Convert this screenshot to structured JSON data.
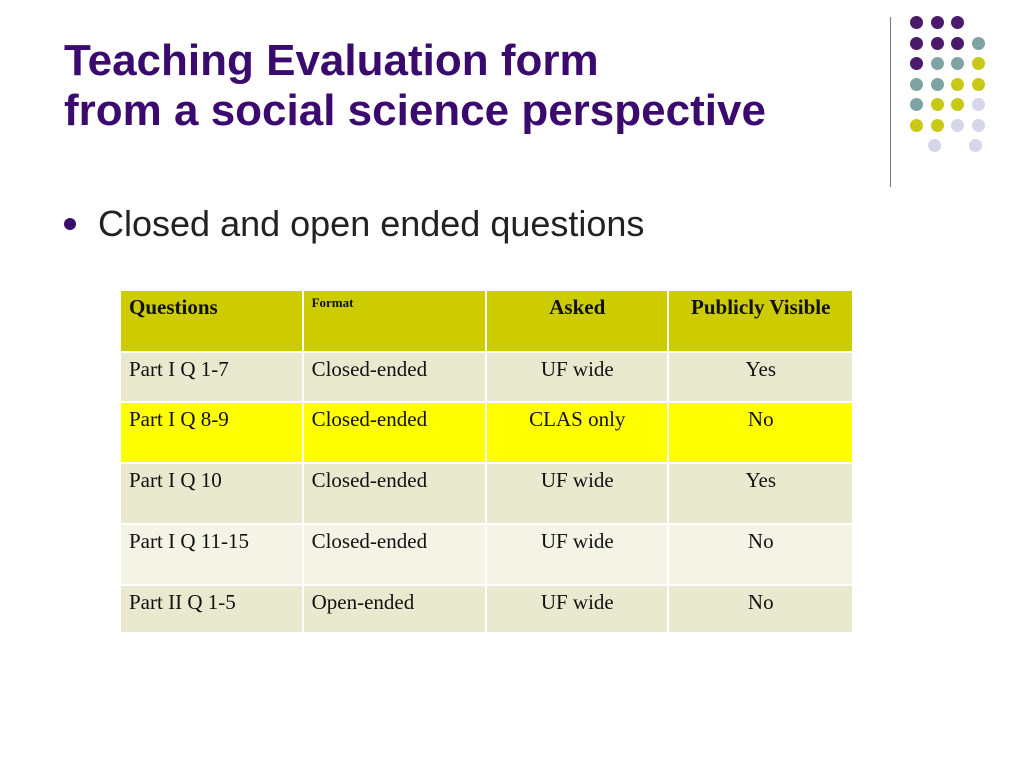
{
  "title": {
    "line1": "Teaching Evaluation form",
    "line2": "from a social science perspective"
  },
  "bullet": "Closed and open ended questions",
  "colors": {
    "title": "#3b0a6e",
    "header_fill": "#cccc00",
    "row_light": "#e9e9cf",
    "row_pale": "#f3f3e6",
    "row_highlight": "#ffff00",
    "dot_purple": "#4b1a6b",
    "dot_teal": "#7fa3a3",
    "dot_olive": "#c8c817",
    "dot_lavender": "#d6d6ea"
  },
  "table": {
    "headers": [
      "Questions",
      "Format",
      "Asked",
      "Publicly Visible"
    ],
    "rows": [
      [
        "Part I Q 1-7",
        "Closed-ended",
        "UF wide",
        "Yes"
      ],
      [
        "Part I Q 8-9",
        "Closed-ended",
        "CLAS only",
        "No"
      ],
      [
        "Part I Q 10",
        "Closed-ended",
        "UF wide",
        "Yes"
      ],
      [
        "Part I Q 11-15",
        "Closed-ended",
        "UF wide",
        "No"
      ],
      [
        "Part II Q 1-5",
        "Open-ended",
        "UF wide",
        "No"
      ]
    ]
  }
}
